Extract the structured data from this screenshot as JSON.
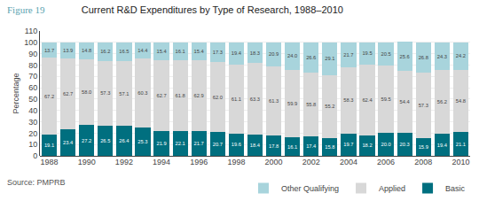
{
  "chart_data": {
    "type": "bar",
    "stacked": true,
    "title": "Current R&D Expenditures by Type of Research, 1988–2010",
    "annotations": [
      "Figure 19",
      "Source: PMPRB"
    ],
    "ylabel": "Percentage",
    "categories": [
      "1988",
      null,
      "1990",
      null,
      "1992",
      null,
      "1994",
      null,
      "1996",
      null,
      "1998",
      null,
      "2000",
      null,
      "2002",
      null,
      "2004",
      null,
      "2006",
      null,
      "2008",
      null,
      "2010"
    ],
    "series": [
      {
        "name": "Basic",
        "color": "#006f7f",
        "values": [
          19.1,
          23.4,
          27.2,
          26.5,
          26.4,
          25.3,
          21.9,
          22.1,
          21.7,
          20.7,
          19.6,
          18.4,
          17.8,
          16.1,
          17.4,
          15.8,
          19.7,
          18.2,
          20.0,
          20.3,
          15.9,
          19.4,
          21.1
        ]
      },
      {
        "name": "Applied",
        "color": "#d8d8d8",
        "values": [
          67.2,
          62.7,
          58.0,
          57.3,
          57.1,
          60.3,
          62.7,
          61.8,
          62.9,
          62.0,
          61.1,
          63.3,
          61.3,
          59.9,
          55.8,
          55.2,
          58.3,
          62.4,
          59.5,
          54.4,
          57.3,
          56.2,
          54.8
        ]
      },
      {
        "name": "Other Qualifying",
        "color": "#a8d4dc",
        "values": [
          13.7,
          13.9,
          14.8,
          16.2,
          16.5,
          14.4,
          15.4,
          16.1,
          15.4,
          17.3,
          19.4,
          18.3,
          20.9,
          24.0,
          26.6,
          29.1,
          21.7,
          19.5,
          20.5,
          25.6,
          26.8,
          24.3,
          24.2
        ]
      }
    ],
    "ylim": [
      0,
      110
    ],
    "yticks": [
      0,
      10,
      20,
      30,
      40,
      50,
      60,
      70,
      80,
      90,
      100,
      110
    ],
    "grid": true,
    "legend": "lower right",
    "data_labels": true
  }
}
